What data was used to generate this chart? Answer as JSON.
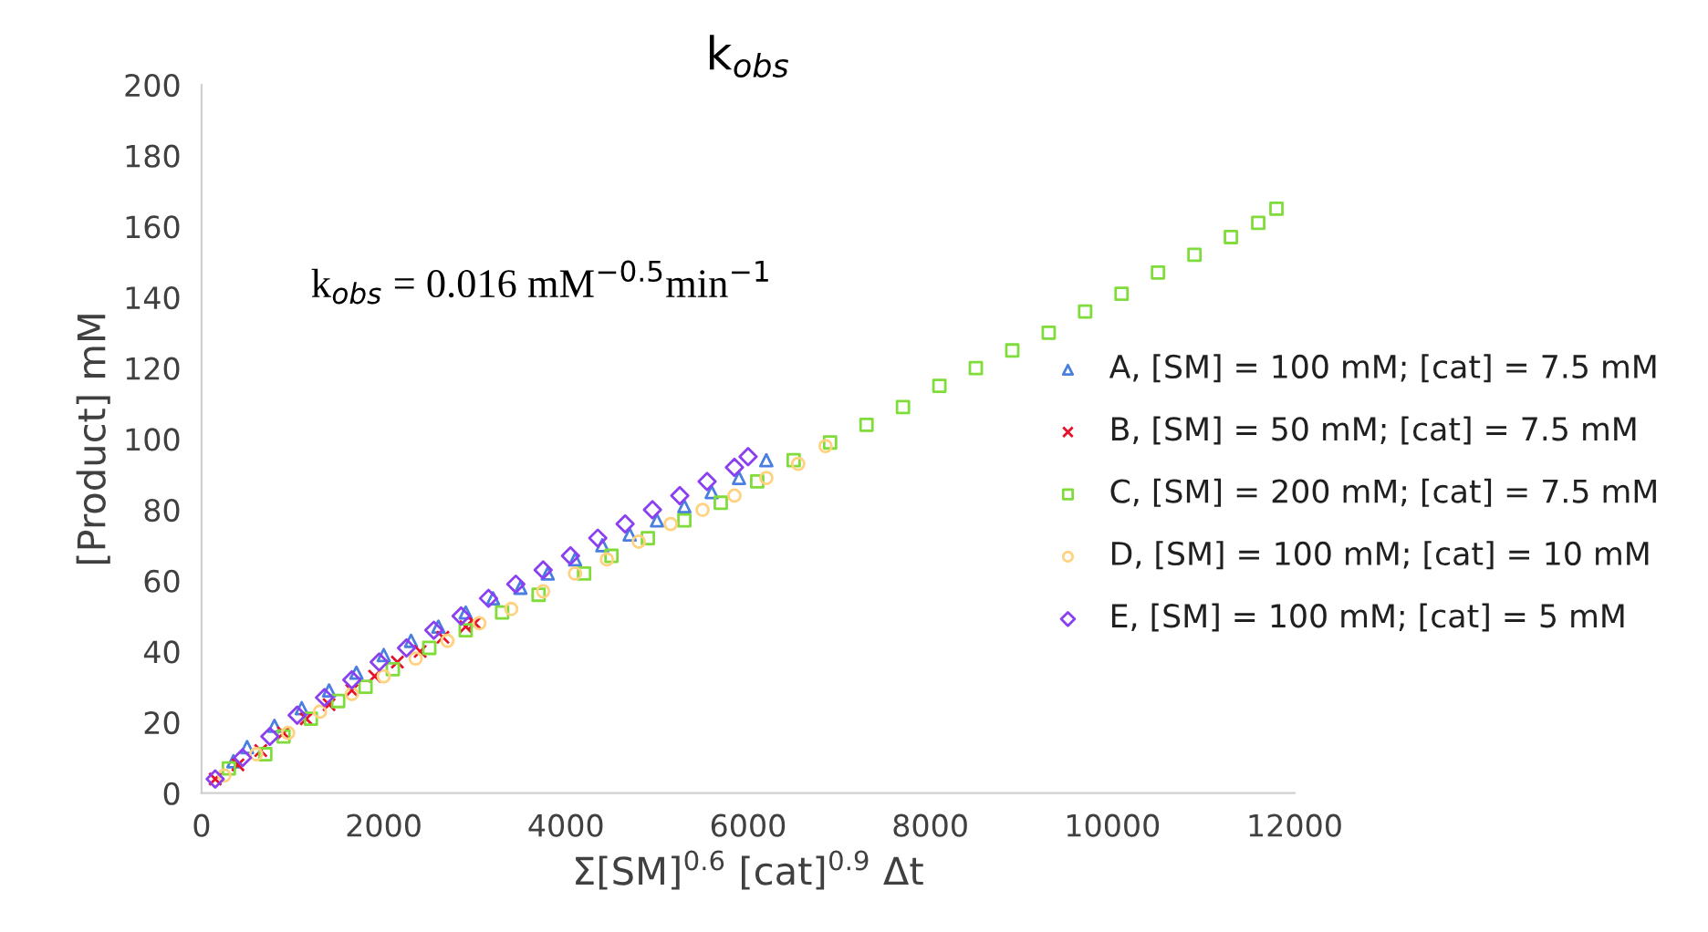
{
  "chart_data": {
    "type": "scatter",
    "title": "k$_{obs}$",
    "xlabel": "Σ[SM]$^{0.6}$ [cat]$^{0.9}$ Δt",
    "ylabel": "[Product] mM",
    "annotations": [
      "k$_{obs}$ = 0.016 mM$^{−0.5}$min$^{−1}$"
    ],
    "xlim": [
      0,
      12000
    ],
    "xticks": [
      0,
      2000,
      4000,
      6000,
      8000,
      10000,
      12000
    ],
    "ylim": [
      0,
      200
    ],
    "yticks": [
      0,
      20,
      40,
      60,
      80,
      100,
      120,
      140,
      160,
      180,
      200
    ],
    "grid": false,
    "legend": "right",
    "series": [
      {
        "name": "A, [SM] = 100 mM; [cat] = 7.5 mM",
        "color": "#4a7fe0",
        "marker": "triangle",
        "x": [
          350,
          500,
          800,
          1100,
          1400,
          1700,
          2000,
          2300,
          2600,
          2900,
          3200,
          3500,
          3800,
          4100,
          4400,
          4700,
          5000,
          5300,
          5600,
          5900,
          6200
        ],
        "values": [
          9,
          13,
          19,
          24,
          29,
          34,
          39,
          43,
          47,
          51,
          55,
          58,
          62,
          66,
          70,
          73,
          77,
          81,
          85,
          89,
          94
        ]
      },
      {
        "name": "B, [SM] = 50 mM; [cat] = 7.5 mM",
        "color": "#e8102a",
        "marker": "cross",
        "x": [
          150,
          400,
          650,
          900,
          1150,
          1400,
          1650,
          1900,
          2150,
          2400,
          2650,
          2900,
          3000
        ],
        "values": [
          4,
          8,
          12,
          17,
          21,
          25,
          29,
          33,
          37,
          40,
          44,
          47,
          48
        ]
      },
      {
        "name": "C, [SM] = 200 mM; [cat] = 7.5 mM",
        "color": "#7fdc3a",
        "marker": "square",
        "x": [
          300,
          700,
          900,
          1200,
          1500,
          1800,
          2100,
          2500,
          2900,
          3300,
          3700,
          4200,
          4500,
          4900,
          5300,
          5700,
          6100,
          6500,
          6900,
          7300,
          7700,
          8100,
          8500,
          8900,
          9300,
          9700,
          10100,
          10500,
          10900,
          11300,
          11600,
          11800
        ],
        "values": [
          7,
          11,
          16,
          21,
          26,
          30,
          35,
          41,
          46,
          51,
          56,
          62,
          67,
          72,
          77,
          82,
          88,
          94,
          99,
          104,
          109,
          115,
          120,
          125,
          130,
          136,
          141,
          147,
          152,
          157,
          161,
          165
        ]
      },
      {
        "name": "D, [SM] = 100 mM; [cat] = 10 mM",
        "color": "#ffd27f",
        "marker": "circle",
        "x": [
          250,
          600,
          950,
          1300,
          1650,
          2000,
          2350,
          2700,
          3050,
          3400,
          3750,
          4100,
          4450,
          4800,
          5150,
          5500,
          5850,
          6200,
          6550,
          6850
        ],
        "values": [
          5,
          11,
          17,
          23,
          28,
          33,
          38,
          43,
          48,
          52,
          57,
          62,
          66,
          71,
          76,
          80,
          84,
          89,
          93,
          98
        ]
      },
      {
        "name": "E, [SM] = 100 mM; [cat] = 5 mM",
        "color": "#8a3ff0",
        "marker": "diamond",
        "x": [
          150,
          450,
          750,
          1050,
          1350,
          1650,
          1950,
          2250,
          2550,
          2850,
          3150,
          3450,
          3750,
          4050,
          4350,
          4650,
          4950,
          5250,
          5550,
          5850,
          6000
        ],
        "values": [
          4,
          10,
          16,
          22,
          27,
          32,
          37,
          41,
          46,
          50,
          55,
          59,
          63,
          67,
          72,
          76,
          80,
          84,
          88,
          92,
          95
        ]
      }
    ]
  }
}
